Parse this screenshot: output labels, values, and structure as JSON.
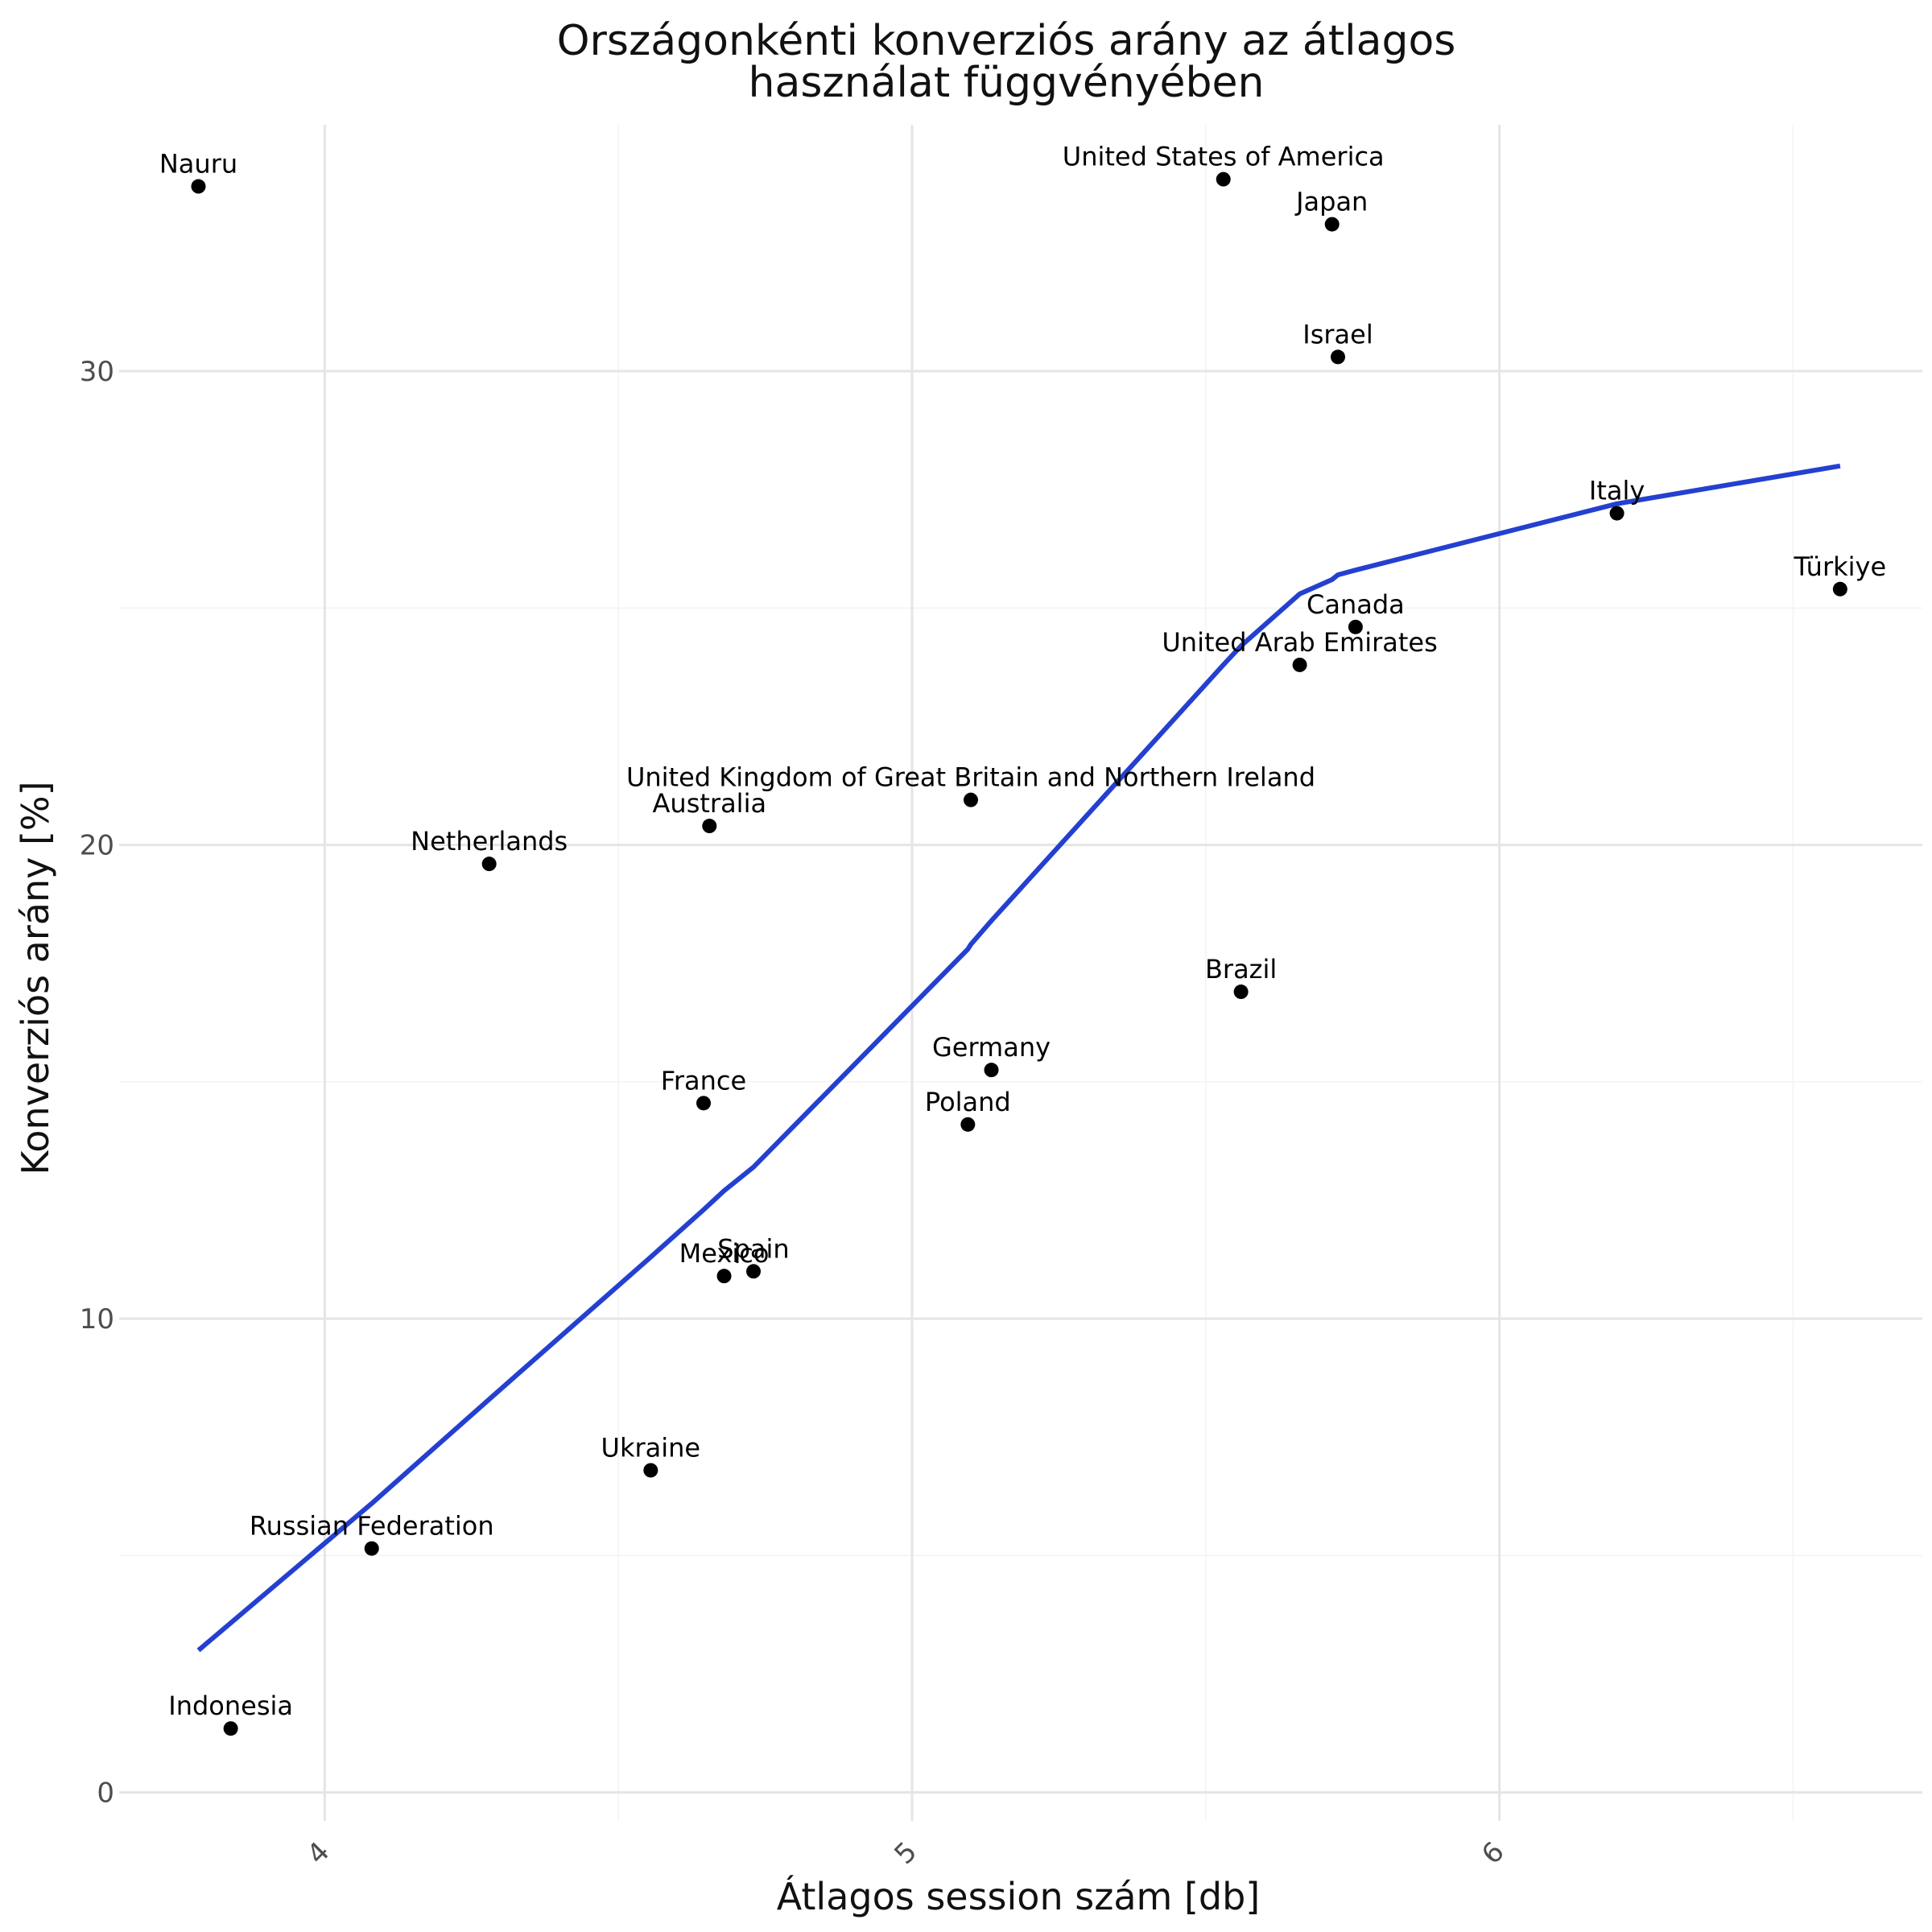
{
  "chart_data": {
    "type": "scatter",
    "title": [
      "Országonkénti konverziós arány az átlagos",
      "használat függvényében"
    ],
    "xlabel": "Átlagos session szám [db]",
    "ylabel": "Konverziós arány [%]",
    "xlim": [
      3.65,
      6.72
    ],
    "ylim": [
      -0.6,
      35.2
    ],
    "x_ticks": [
      4,
      5,
      6
    ],
    "x_tick_labels": [
      "4",
      "5",
      "6"
    ],
    "y_ticks": [
      0,
      10,
      20,
      30
    ],
    "y_tick_labels": [
      "0",
      "10",
      "20",
      "30"
    ],
    "x_minor": [
      4.5,
      5.5,
      6.5
    ],
    "y_minor": [
      5,
      15,
      25
    ],
    "grid": true,
    "legend": "none",
    "colors": {
      "points": "#000000",
      "trend": "#2440d0"
    },
    "points": [
      {
        "label": "Nauru",
        "x": 3.785,
        "y": 33.9
      },
      {
        "label": "United States of America",
        "x": 5.53,
        "y": 34.05
      },
      {
        "label": "Japan",
        "x": 5.715,
        "y": 33.1
      },
      {
        "label": "Israel",
        "x": 5.725,
        "y": 30.3
      },
      {
        "label": "Italy",
        "x": 6.2,
        "y": 27.0
      },
      {
        "label": "Türkiye",
        "x": 6.58,
        "y": 25.4
      },
      {
        "label": "Canada",
        "x": 5.755,
        "y": 24.6
      },
      {
        "label": "United Arab Emirates",
        "x": 5.66,
        "y": 23.8
      },
      {
        "label": "United Kingdom of Great Britain and Northern Ireland",
        "x": 5.1,
        "y": 20.95
      },
      {
        "label": "Australia",
        "x": 4.655,
        "y": 20.4
      },
      {
        "label": "Netherlands",
        "x": 4.28,
        "y": 19.6
      },
      {
        "label": "Brazil",
        "x": 5.56,
        "y": 16.9
      },
      {
        "label": "Germany",
        "x": 5.135,
        "y": 15.25
      },
      {
        "label": "France",
        "x": 4.645,
        "y": 14.55
      },
      {
        "label": "Poland",
        "x": 5.095,
        "y": 14.1
      },
      {
        "label": "Spain",
        "x": 4.73,
        "y": 11.0
      },
      {
        "label": "Mexico",
        "x": 4.68,
        "y": 10.9
      },
      {
        "label": "Ukraine",
        "x": 4.555,
        "y": 6.8
      },
      {
        "label": "Russian Federation",
        "x": 4.08,
        "y": 5.15
      },
      {
        "label": "Indonesia",
        "x": 3.84,
        "y": 1.35
      }
    ],
    "trend_line": {
      "x": [
        3.785,
        4.08,
        4.28,
        4.555,
        4.645,
        4.68,
        4.73,
        5.095,
        5.1,
        5.135,
        5.53,
        5.56,
        5.66,
        5.715,
        5.725,
        5.755,
        6.2,
        6.58
      ],
      "y": [
        3.0,
        6.1,
        8.3,
        11.3,
        12.3,
        12.7,
        13.2,
        17.8,
        17.9,
        18.4,
        23.8,
        24.2,
        25.3,
        25.6,
        25.7,
        25.8,
        27.2,
        28.0
      ]
    }
  }
}
